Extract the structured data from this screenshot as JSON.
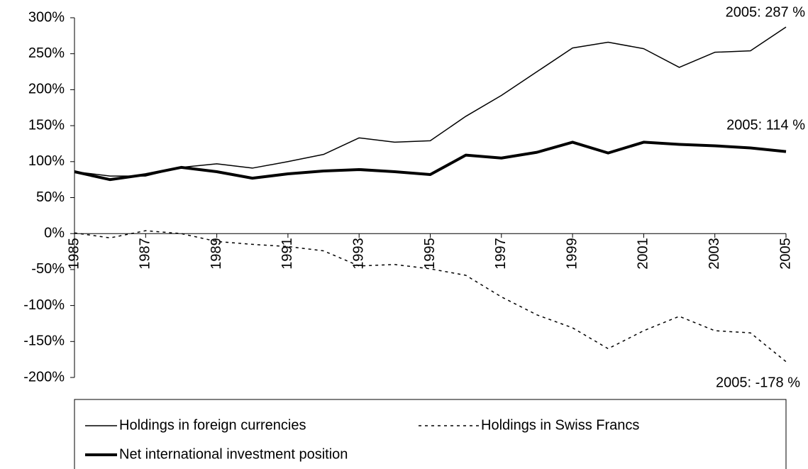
{
  "chart_data": {
    "type": "line",
    "x": [
      1985,
      1986,
      1987,
      1988,
      1989,
      1990,
      1991,
      1992,
      1993,
      1994,
      1995,
      1996,
      1997,
      1998,
      1999,
      2000,
      2001,
      2002,
      2003,
      2004,
      2005
    ],
    "series": [
      {
        "name": "Holdings in foreign currencies",
        "color": "#000000",
        "linewidth": 1.5,
        "linestyle": "solid",
        "values": [
          86,
          80,
          80,
          92,
          97,
          91,
          100,
          110,
          133,
          127,
          129,
          163,
          192,
          225,
          258,
          266,
          257,
          231,
          252,
          254,
          287
        ]
      },
      {
        "name": "Holdings in Swiss Francs",
        "color": "#000000",
        "linewidth": 1.5,
        "linestyle": "dotted",
        "values": [
          1,
          -6,
          4,
          0,
          -11,
          -15,
          -18,
          -24,
          -45,
          -43,
          -49,
          -58,
          -88,
          -113,
          -131,
          -160,
          -135,
          -115,
          -135,
          -138,
          -178
        ]
      },
      {
        "name": "Net international investment position",
        "color": "#000000",
        "linewidth": 4,
        "linestyle": "solid",
        "values": [
          86,
          75,
          82,
          92,
          86,
          77,
          83,
          87,
          89,
          86,
          82,
          109,
          105,
          113,
          127,
          112,
          127,
          124,
          122,
          119,
          114
        ]
      }
    ],
    "annotations": [
      "2005: 287 %",
      "2005: 114 %",
      "2005: -178 %"
    ],
    "xlim": [
      1985,
      2005
    ],
    "xticks": [
      1985,
      1987,
      1989,
      1991,
      1993,
      1995,
      1997,
      1999,
      2001,
      2003,
      2005
    ],
    "ylim": [
      -200,
      300
    ],
    "yticks": [
      {
        "value": -200,
        "label": "-200%"
      },
      {
        "value": -150,
        "label": "-150%"
      },
      {
        "value": -100,
        "label": "-100%"
      },
      {
        "value": -50,
        "label": "-50%"
      },
      {
        "value": 0,
        "label": "0%"
      },
      {
        "value": 50,
        "label": "50%"
      },
      {
        "value": 100,
        "label": "100%"
      },
      {
        "value": 150,
        "label": "150%"
      },
      {
        "value": 200,
        "label": "200%"
      },
      {
        "value": 250,
        "label": "250%"
      },
      {
        "value": 300,
        "label": "300%"
      }
    ],
    "legend": "bottom"
  }
}
